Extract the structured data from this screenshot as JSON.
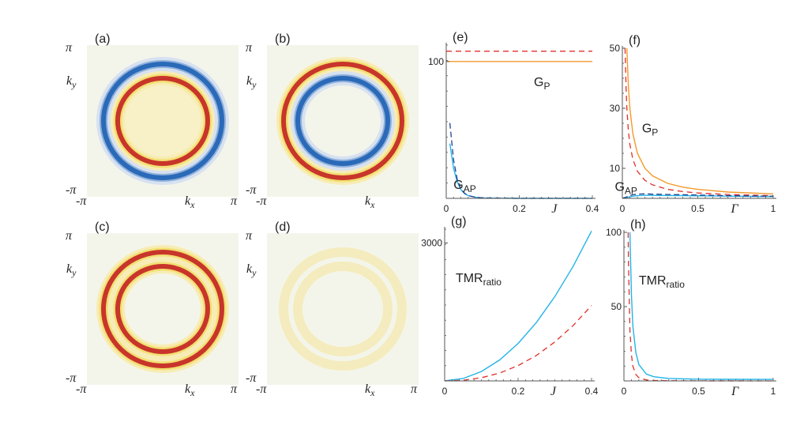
{
  "colors": {
    "blue_ring": "#2a6ab8",
    "red_ring": "#c8352a",
    "yellow_halo": "#f3df72",
    "background": "#f4f5ea",
    "orange": "#f39a2b",
    "red_dashed": "#e0302a",
    "cyan": "#22b4e8",
    "navy_dashed": "#1f3f8f"
  },
  "heatmaps": [
    {
      "panel": "(a)",
      "rings": [
        {
          "color": "blue",
          "scale": "outer"
        },
        {
          "color": "red",
          "scale": "inner"
        }
      ],
      "ytop": "π",
      "ylabel": {
        "main": "k",
        "sub": "y"
      },
      "ybottom": "-π",
      "xleft": "-π",
      "xlabel": {
        "main": "k",
        "sub": "x"
      },
      "xright": "π"
    },
    {
      "panel": "(b)",
      "rings": [
        {
          "color": "red",
          "scale": "outer"
        },
        {
          "color": "blue",
          "scale": "inner"
        }
      ],
      "ytop": "π",
      "ylabel": {
        "main": "k",
        "sub": "y"
      },
      "ybottom": "-π",
      "xleft": "-π",
      "xlabel": {
        "main": "k",
        "sub": "x"
      },
      "xright": ""
    },
    {
      "panel": "(c)",
      "rings": [
        {
          "color": "red",
          "scale": "outer"
        },
        {
          "color": "red",
          "scale": "inner"
        }
      ],
      "ytop": "π",
      "ylabel": {
        "main": "k",
        "sub": "y"
      },
      "ybottom": "-π",
      "xleft": "-π",
      "xlabel": {
        "main": "k",
        "sub": "x"
      },
      "xright": "π"
    },
    {
      "panel": "(d)",
      "rings": [
        {
          "color": "faint",
          "scale": "outer"
        },
        {
          "color": "faint",
          "scale": "inner"
        }
      ],
      "ytop": "π",
      "ylabel": {
        "main": "k",
        "sub": "y"
      },
      "ybottom": "-π",
      "xleft": "-π",
      "xlabel": {
        "main": "k",
        "sub": "x"
      },
      "xright": "π"
    }
  ],
  "chart_data": [
    {
      "panel": "(e)",
      "type": "line",
      "xlabel": "J",
      "xlim": [
        0,
        0.4
      ],
      "ylim": [
        0,
        112
      ],
      "xticks": [
        {
          "v": 0,
          "label": "0"
        },
        {
          "v": 0.2,
          "label": "0.2"
        },
        {
          "v": 0.4,
          "label": "0.4"
        }
      ],
      "yticks": [
        {
          "v": 100,
          "label": "100"
        }
      ],
      "annotations": [
        {
          "main": "G",
          "sub": "P",
          "x": 0.24,
          "y": 82
        },
        {
          "main": "G",
          "sub": "AP",
          "x": 0.02,
          "y": 7
        }
      ],
      "series": [
        {
          "style": "orange-solid",
          "x": [
            0,
            0.4
          ],
          "y": [
            100,
            100
          ]
        },
        {
          "style": "red-dashed",
          "x": [
            0,
            0.4
          ],
          "y": [
            107.5,
            107.5
          ]
        },
        {
          "style": "cyan-solid",
          "x": [
            0.01,
            0.02,
            0.03,
            0.04,
            0.05,
            0.06,
            0.08,
            0.1,
            0.15,
            0.2,
            0.3,
            0.4
          ],
          "y": [
            40,
            22,
            12,
            6.5,
            3.5,
            2,
            0.8,
            0.3,
            0.1,
            0,
            0,
            0
          ]
        },
        {
          "style": "navy-dashed",
          "x": [
            0.01,
            0.02,
            0.03,
            0.04,
            0.05,
            0.06,
            0.08,
            0.1,
            0.15,
            0.2,
            0.3,
            0.4
          ],
          "y": [
            55,
            28,
            14,
            7,
            3.8,
            2,
            0.8,
            0.3,
            0.1,
            0,
            0,
            0
          ]
        }
      ]
    },
    {
      "panel": "(f)",
      "type": "line",
      "xlabel": "Γ",
      "xlim": [
        0,
        1
      ],
      "ylim": [
        0,
        50
      ],
      "xticks": [
        {
          "v": 0,
          "label": "0"
        },
        {
          "v": 0.5,
          "label": "0.5"
        },
        {
          "v": 1,
          "label": "1"
        }
      ],
      "yticks": [
        {
          "v": 10,
          "label": "10"
        },
        {
          "v": 30,
          "label": "30"
        },
        {
          "v": 50,
          "label": "50"
        }
      ],
      "annotations": [
        {
          "main": "G",
          "sub": "P",
          "x": 0.13,
          "y": 22
        },
        {
          "main": "G",
          "sub": "AP",
          "x": -0.05,
          "y": 2.5
        }
      ],
      "series": [
        {
          "style": "orange-solid",
          "x": [
            0.03,
            0.04,
            0.05,
            0.07,
            0.1,
            0.15,
            0.2,
            0.3,
            0.4,
            0.5,
            0.7,
            1
          ],
          "y": [
            50,
            37.5,
            30,
            21.4,
            15,
            10,
            7.5,
            5,
            3.75,
            3,
            2.1,
            1.5
          ]
        },
        {
          "style": "red-dashed",
          "x": [
            0.018,
            0.025,
            0.03,
            0.04,
            0.05,
            0.07,
            0.1,
            0.15,
            0.2,
            0.3,
            0.4,
            0.5,
            0.7,
            1
          ],
          "y": [
            50,
            36,
            30,
            22.5,
            18,
            12.9,
            9,
            6,
            4.5,
            3,
            2.25,
            1.8,
            1.3,
            0.9
          ]
        },
        {
          "style": "cyan-solid",
          "x": [
            0,
            0.03,
            0.05,
            0.07,
            0.1,
            0.15,
            0.2,
            0.3,
            0.4,
            0.5,
            0.7,
            1
          ],
          "y": [
            0,
            0.3,
            0.5,
            0.7,
            0.9,
            1.0,
            1.0,
            0.95,
            0.9,
            0.85,
            0.75,
            0.6
          ]
        },
        {
          "style": "navy-dashed",
          "x": [
            0,
            0.03,
            0.05,
            0.07,
            0.1,
            0.15,
            0.2,
            0.3,
            0.4,
            0.5,
            0.7,
            1
          ],
          "y": [
            0,
            0.5,
            0.9,
            1.2,
            1.4,
            1.5,
            1.4,
            1.3,
            1.2,
            1.1,
            0.9,
            0.7
          ]
        }
      ]
    },
    {
      "panel": "(g)",
      "type": "line",
      "xlabel": "J",
      "xlim": [
        0,
        0.4
      ],
      "ylim": [
        0,
        3300
      ],
      "xticks": [
        {
          "v": 0,
          "label": "0"
        },
        {
          "v": 0.2,
          "label": "0.2"
        },
        {
          "v": 0.4,
          "label": "0.4"
        }
      ],
      "yticks": [
        {
          "v": 3000,
          "label": "3000"
        }
      ],
      "annotations": [
        {
          "main": "TMR",
          "sub": "ratio",
          "x": 0.03,
          "y": 2150
        }
      ],
      "series": [
        {
          "style": "cyan-solid",
          "x": [
            0,
            0.05,
            0.1,
            0.15,
            0.2,
            0.25,
            0.3,
            0.35,
            0.4
          ],
          "y": [
            0,
            51,
            204,
            458,
            815,
            1273,
            1834,
            2496,
            3260
          ]
        },
        {
          "style": "red-dashed",
          "x": [
            0,
            0.05,
            0.1,
            0.15,
            0.2,
            0.25,
            0.3,
            0.35,
            0.4
          ],
          "y": [
            0,
            14,
            68,
            172,
            333,
            556,
            847,
            1207,
            1640
          ]
        }
      ]
    },
    {
      "panel": "(h)",
      "type": "line",
      "xlabel": "Γ",
      "xlim": [
        0,
        1
      ],
      "ylim": [
        0,
        100
      ],
      "xticks": [
        {
          "v": 0,
          "label": "0"
        },
        {
          "v": 0.5,
          "label": "0.5"
        },
        {
          "v": 1,
          "label": "1"
        }
      ],
      "yticks": [
        {
          "v": 50,
          "label": "50"
        },
        {
          "v": 100,
          "label": "100"
        }
      ],
      "annotations": [
        {
          "main": "TMR",
          "sub": "ratio",
          "x": 0.1,
          "y": 65
        }
      ],
      "series": [
        {
          "style": "cyan-solid",
          "x": [
            0.04,
            0.05,
            0.06,
            0.08,
            0.1,
            0.15,
            0.2,
            0.3,
            0.5,
            0.7,
            1
          ],
          "y": [
            100,
            58,
            37,
            19,
            11,
            4.6,
            2.8,
            1.65,
            1.18,
            1.08,
            1.03
          ]
        },
        {
          "style": "red-dashed",
          "x": [
            0.028,
            0.03,
            0.04,
            0.05,
            0.06,
            0.08,
            0.1,
            0.15,
            0.2,
            0.3,
            0.5,
            1
          ],
          "y": [
            100,
            81,
            34,
            17.6,
            10,
            4.3,
            2.2,
            0.65,
            0.27,
            0.1,
            0.05,
            0.02
          ]
        }
      ]
    }
  ]
}
